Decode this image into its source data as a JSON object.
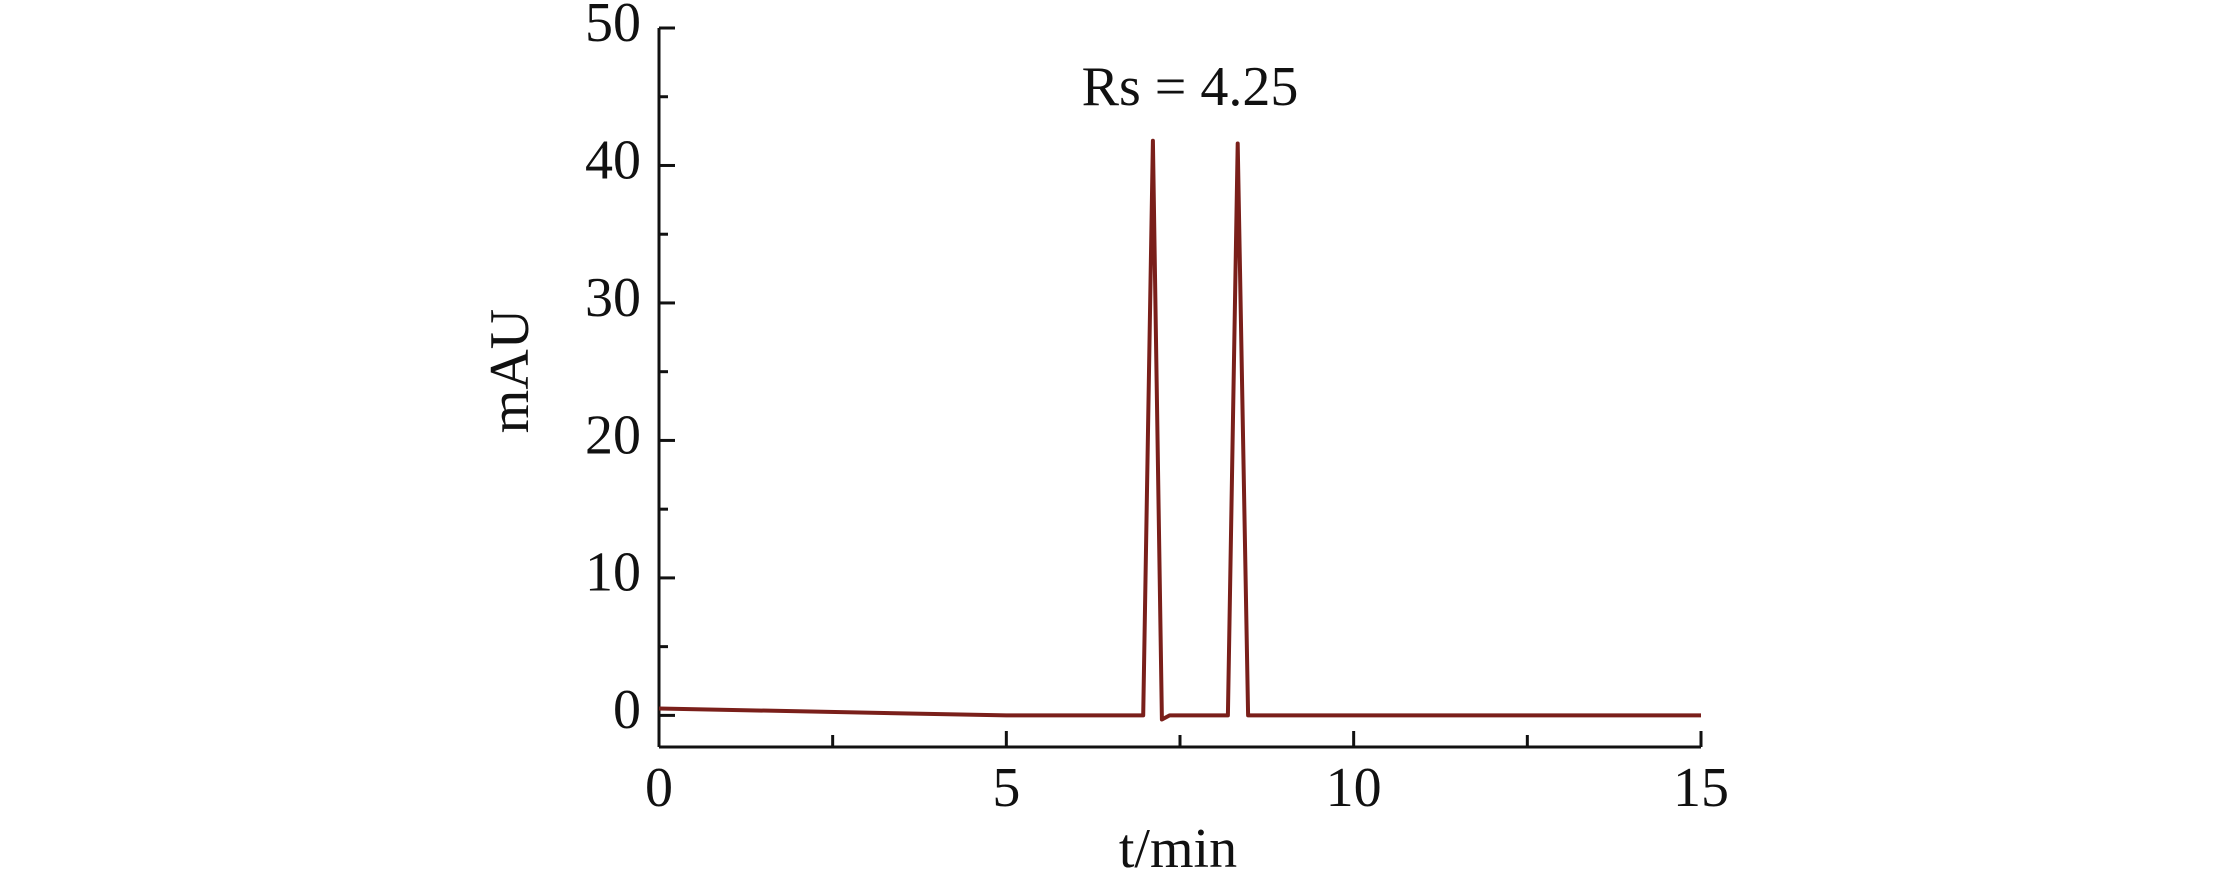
{
  "chart_data": {
    "type": "line",
    "annotation": "Rs = 4.25",
    "xlabel": "t/min",
    "ylabel": "mAU",
    "x": [
      0,
      5,
      6.97,
      7.11,
      7.24,
      7.35,
      8.19,
      8.33,
      8.48,
      15
    ],
    "series": [
      {
        "name": "chromatogram",
        "color": "#7a1f1a",
        "values": [
          0.5,
          0,
          0,
          41.8,
          -0.3,
          0,
          0,
          41.6,
          0,
          0
        ]
      }
    ],
    "xlim": [
      0,
      15
    ],
    "xticks": [
      0,
      5,
      10,
      15
    ],
    "ylim": [
      -2.3,
      50
    ],
    "yticks": [
      0,
      10,
      20,
      30,
      40,
      50
    ],
    "grid": false
  }
}
